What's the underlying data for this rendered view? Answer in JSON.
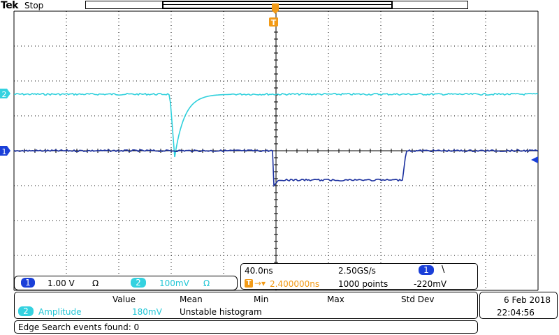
{
  "header": {
    "brand": "Tek",
    "status": "Stop"
  },
  "trigger_marker": {
    "label": "T"
  },
  "channel_markers": {
    "ch1": "1",
    "ch2": "2"
  },
  "vertical_bar": {
    "ch1_badge": "1",
    "ch1_scale": "1.00 V",
    "ch1_coupling": "Ω",
    "ch2_badge": "2",
    "ch2_scale": "100mV",
    "ch2_coupling": "Ω"
  },
  "horizontal": {
    "timebase": "40.0ns",
    "sample_rate": "2.50GS/s",
    "trigger_source_badge": "1",
    "trigger_slope": "\\",
    "trigger_prefix": "T",
    "trigger_position": "2.400000ns",
    "record_length": "1000 points",
    "trigger_level": "-220mV"
  },
  "measurements": {
    "headers": [
      "Value",
      "Mean",
      "Min",
      "Max",
      "Std Dev"
    ],
    "row": {
      "badge": "2",
      "name": "Amplitude",
      "value": "180mV",
      "mean": "Unstable histogram"
    }
  },
  "datetime": {
    "date": "6 Feb  2018",
    "time": "22:04:56"
  },
  "search": {
    "text": "Edge Search events found: 0"
  },
  "colors": {
    "ch1": "#1a2f9e",
    "ch2": "#2fd0dc",
    "trigger": "#f29a16",
    "grid": "#000000"
  }
}
